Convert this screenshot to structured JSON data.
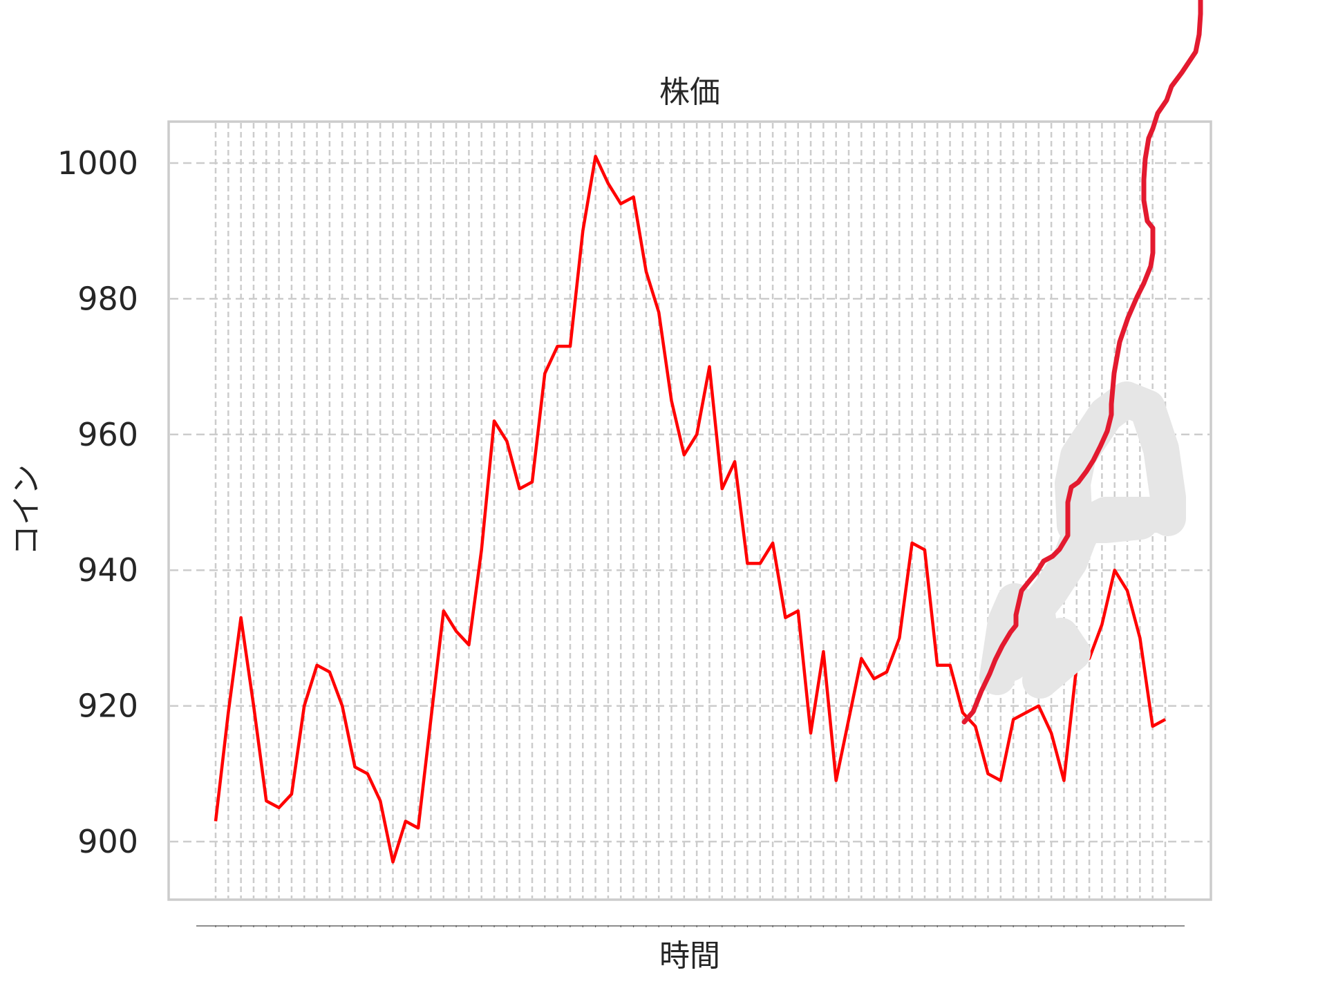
{
  "chart_data": {
    "type": "line",
    "title": "株価",
    "xlabel": "時間",
    "ylabel": "コイン",
    "ylim": [
      891,
      1007
    ],
    "yticks": [
      900,
      920,
      940,
      960,
      980,
      1000
    ],
    "grid": true,
    "legend": "none",
    "series": [
      {
        "color": "#ff0000",
        "values": [
          903,
          919,
          933,
          920,
          906,
          905,
          907,
          920,
          926,
          925,
          920,
          911,
          910,
          906,
          897,
          903,
          902,
          918,
          934,
          931,
          929,
          943,
          962,
          959,
          952,
          953,
          969,
          973,
          973,
          990,
          1001,
          997,
          994,
          995,
          984,
          978,
          965,
          957,
          960,
          970,
          952,
          956,
          941,
          941,
          944,
          933,
          934,
          916,
          928,
          909,
          918,
          927,
          924,
          925,
          930,
          944,
          943,
          926,
          926,
          919,
          917,
          910,
          909,
          918,
          919,
          920,
          916,
          909,
          926,
          927,
          932,
          940,
          937,
          930,
          917,
          918
        ]
      }
    ],
    "overlay_color": "#e31a2f",
    "smudge_color": "#e6e6e6"
  }
}
